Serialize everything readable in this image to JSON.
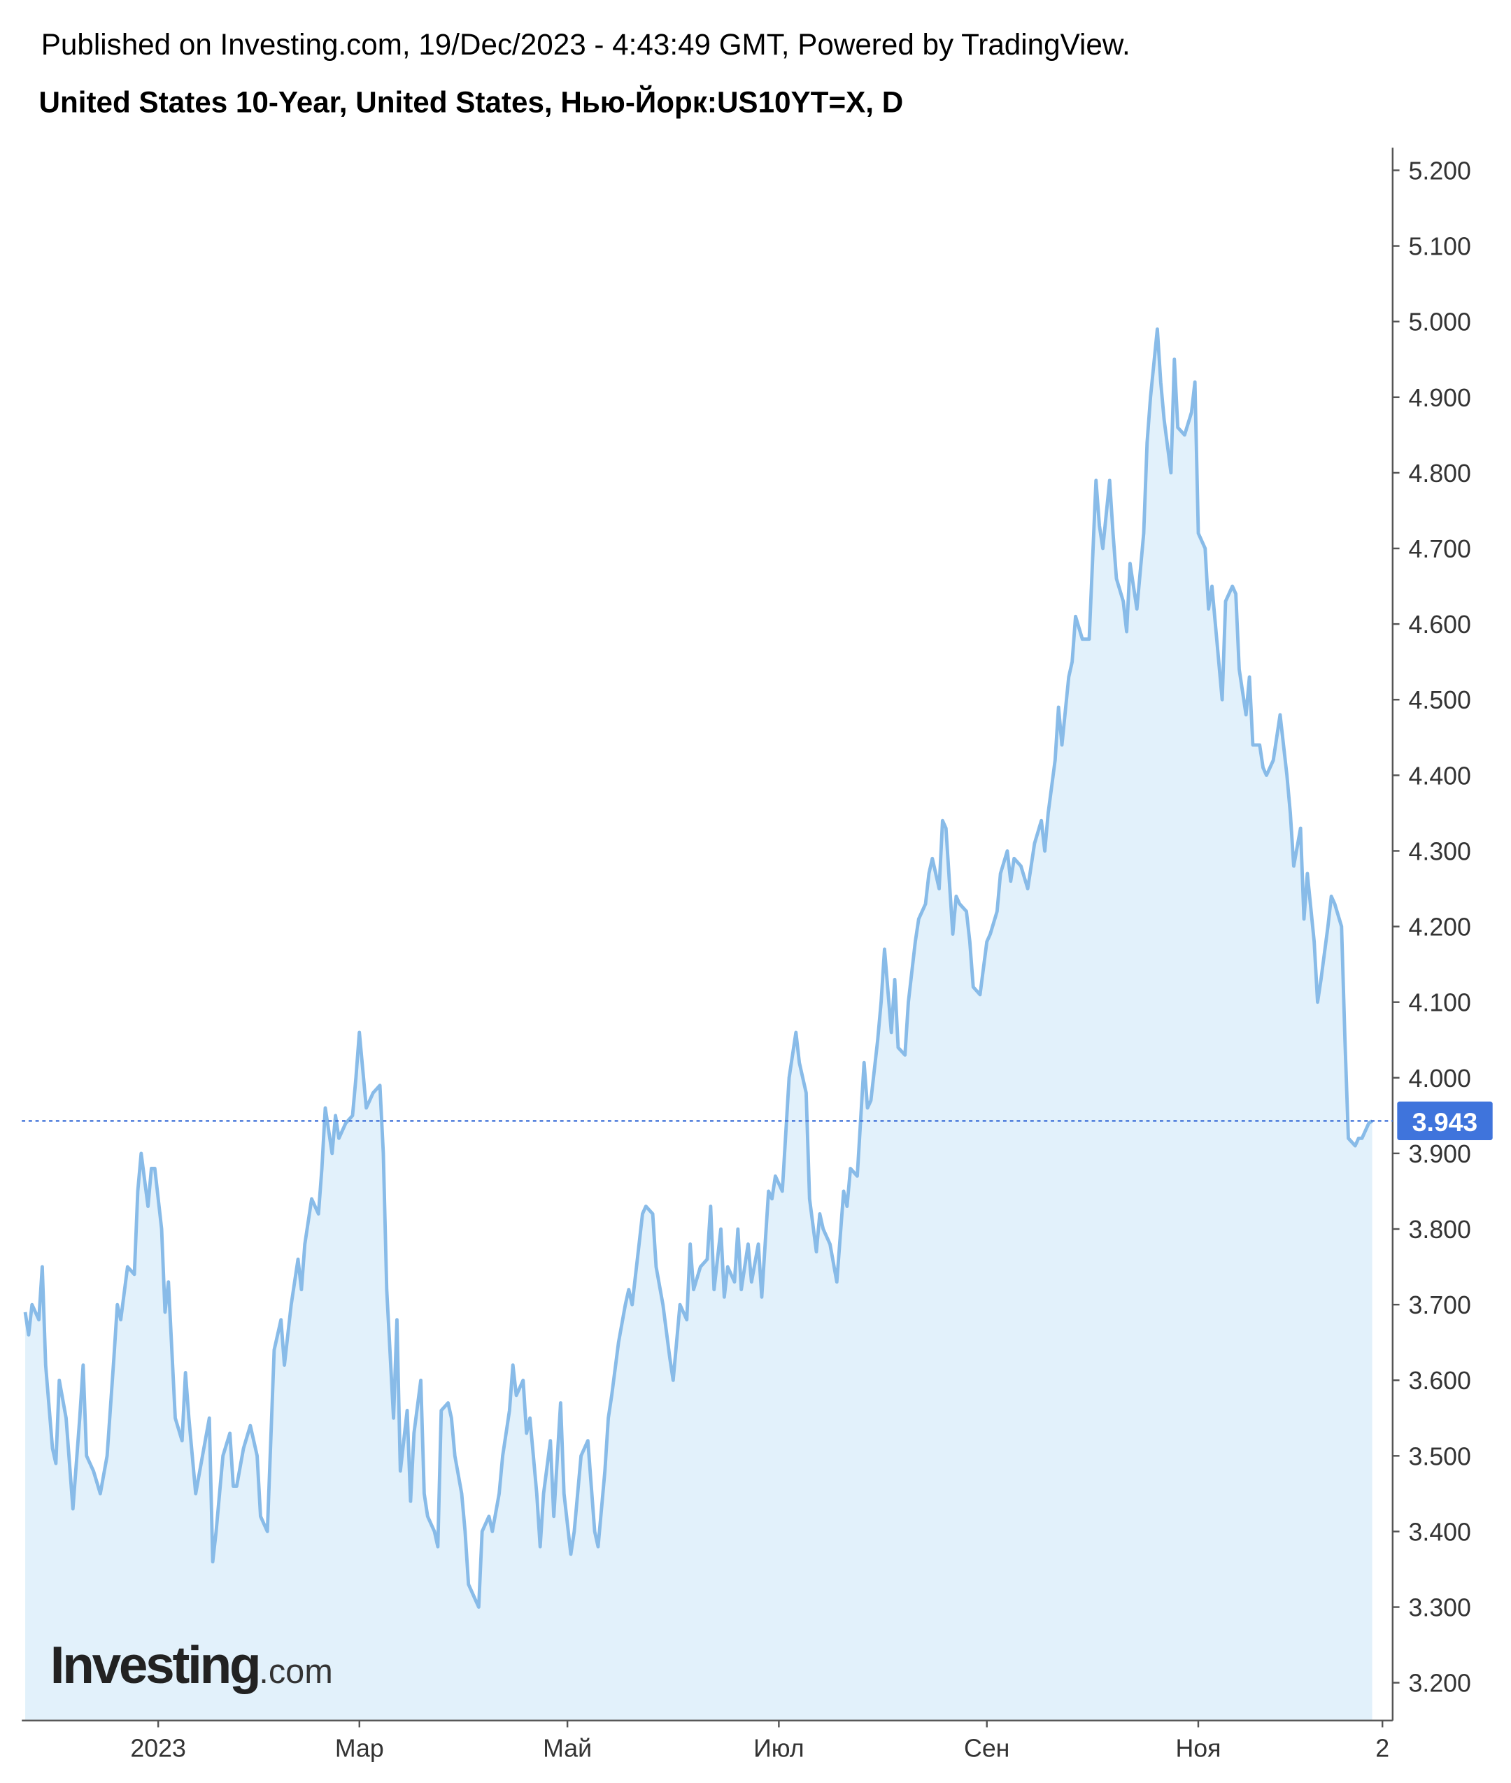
{
  "header": {
    "published": "Published on Investing.com, 19/Dec/2023 - 4:43:49 GMT, Powered by TradingView.",
    "instrument": "United States 10-Year, United States, Нью-Йорк:US10YT=X, D"
  },
  "watermark": {
    "brand": "Investing",
    "suffix": ".com"
  },
  "chart_data": {
    "type": "area",
    "color": "#88bbe8",
    "fill": "#e2f1fb",
    "grid": false,
    "xlim": [
      -40,
      362
    ],
    "ylim": [
      3.15,
      5.23
    ],
    "xticks": [
      {
        "value": 0,
        "label": "2023"
      },
      {
        "value": 59,
        "label": "Мар"
      },
      {
        "value": 120,
        "label": "Май"
      },
      {
        "value": 182,
        "label": "Июл"
      },
      {
        "value": 243,
        "label": "Сен"
      },
      {
        "value": 305,
        "label": "Ноя"
      },
      {
        "value": 359,
        "label": "2"
      }
    ],
    "yticks": [
      {
        "value": 3.2,
        "label": "3.200"
      },
      {
        "value": 3.3,
        "label": "3.300"
      },
      {
        "value": 3.4,
        "label": "3.400"
      },
      {
        "value": 3.5,
        "label": "3.500"
      },
      {
        "value": 3.6,
        "label": "3.600"
      },
      {
        "value": 3.7,
        "label": "3.700"
      },
      {
        "value": 3.8,
        "label": "3.800"
      },
      {
        "value": 3.9,
        "label": "3.900"
      },
      {
        "value": 4.0,
        "label": "4.000"
      },
      {
        "value": 4.1,
        "label": "4.100"
      },
      {
        "value": 4.2,
        "label": "4.200"
      },
      {
        "value": 4.3,
        "label": "4.300"
      },
      {
        "value": 4.4,
        "label": "4.400"
      },
      {
        "value": 4.5,
        "label": "4.500"
      },
      {
        "value": 4.6,
        "label": "4.600"
      },
      {
        "value": 4.7,
        "label": "4.700"
      },
      {
        "value": 4.8,
        "label": "4.800"
      },
      {
        "value": 4.9,
        "label": "4.900"
      },
      {
        "value": 5.0,
        "label": "5.000"
      },
      {
        "value": 5.1,
        "label": "5.100"
      },
      {
        "value": 5.2,
        "label": "5.200"
      }
    ],
    "x": [
      -39,
      -38,
      -37,
      -35,
      -34,
      -33,
      -31,
      -30,
      -29,
      -27,
      -25,
      -23,
      -22,
      -21,
      -19,
      -17,
      -15,
      -13,
      -12,
      -11,
      -9,
      -7,
      -6,
      -5,
      -3,
      -2,
      -1,
      1,
      2,
      3,
      5,
      7,
      8,
      9,
      11,
      13,
      15,
      16,
      17,
      19,
      21,
      22,
      23,
      25,
      27,
      29,
      30,
      32,
      34,
      36,
      37,
      39,
      41,
      42,
      43,
      45,
      47,
      48,
      49,
      51,
      52,
      53,
      55,
      57,
      58,
      59,
      61,
      62,
      63,
      65,
      66,
      67,
      69,
      70,
      71,
      73,
      74,
      75,
      77,
      78,
      79,
      81,
      82,
      83,
      85,
      86,
      87,
      89,
      90,
      91,
      93,
      94,
      95,
      97,
      98,
      100,
      101,
      103,
      104,
      105,
      107,
      108,
      109,
      111,
      112,
      113,
      115,
      116,
      118,
      119,
      121,
      122,
      124,
      126,
      128,
      129,
      131,
      132,
      133,
      135,
      137,
      138,
      139,
      141,
      142,
      143,
      145,
      146,
      148,
      150,
      151,
      153,
      155,
      156,
      157,
      159,
      161,
      162,
      163,
      165,
      166,
      167,
      169,
      170,
      171,
      173,
      174,
      176,
      177,
      179,
      180,
      181,
      183,
      185,
      187,
      188,
      190,
      191,
      193,
      194,
      195,
      197,
      199,
      201,
      202,
      203,
      205,
      207,
      208,
      209,
      211,
      212,
      213,
      215,
      216,
      217,
      219,
      220,
      222,
      223,
      225,
      226,
      227,
      229,
      230,
      231,
      233,
      234,
      235,
      237,
      238,
      239,
      241,
      243,
      244,
      246,
      247,
      249,
      250,
      251,
      253,
      255,
      256,
      257,
      259,
      260,
      261,
      263,
      264,
      265,
      267,
      268,
      269,
      271,
      273,
      275,
      276,
      277,
      279,
      280,
      281,
      283,
      284,
      285,
      287,
      289,
      290,
      291,
      293,
      294,
      295,
      297,
      298,
      299,
      301,
      303,
      304,
      305,
      307,
      308,
      309,
      311,
      312,
      313,
      315,
      316,
      317,
      319,
      320,
      321,
      323,
      324,
      325,
      327,
      328,
      329,
      331,
      332,
      333,
      335,
      336,
      337,
      339,
      340,
      341,
      343,
      344,
      345,
      347,
      348,
      349,
      351,
      352,
      353,
      355,
      356
    ],
    "series": [
      {
        "name": "US10YT",
        "values": [
          3.69,
          3.66,
          3.7,
          3.68,
          3.75,
          3.62,
          3.51,
          3.49,
          3.6,
          3.55,
          3.43,
          3.55,
          3.62,
          3.5,
          3.48,
          3.45,
          3.5,
          3.63,
          3.7,
          3.68,
          3.75,
          3.74,
          3.85,
          3.9,
          3.83,
          3.88,
          3.88,
          3.8,
          3.69,
          3.73,
          3.55,
          3.52,
          3.61,
          3.55,
          3.45,
          3.5,
          3.55,
          3.36,
          3.4,
          3.5,
          3.53,
          3.46,
          3.46,
          3.51,
          3.54,
          3.5,
          3.42,
          3.4,
          3.64,
          3.68,
          3.62,
          3.7,
          3.76,
          3.72,
          3.78,
          3.84,
          3.82,
          3.88,
          3.96,
          3.9,
          3.95,
          3.92,
          3.94,
          3.95,
          4.0,
          4.06,
          3.96,
          3.97,
          3.98,
          3.99,
          3.9,
          3.72,
          3.55,
          3.68,
          3.48,
          3.56,
          3.44,
          3.53,
          3.6,
          3.45,
          3.42,
          3.4,
          3.38,
          3.56,
          3.57,
          3.55,
          3.5,
          3.45,
          3.4,
          3.33,
          3.31,
          3.3,
          3.4,
          3.42,
          3.4,
          3.45,
          3.5,
          3.56,
          3.62,
          3.58,
          3.6,
          3.53,
          3.55,
          3.45,
          3.38,
          3.45,
          3.52,
          3.42,
          3.57,
          3.45,
          3.37,
          3.4,
          3.5,
          3.52,
          3.4,
          3.38,
          3.48,
          3.55,
          3.58,
          3.65,
          3.7,
          3.72,
          3.7,
          3.78,
          3.82,
          3.83,
          3.82,
          3.75,
          3.7,
          3.63,
          3.6,
          3.7,
          3.68,
          3.78,
          3.72,
          3.75,
          3.76,
          3.83,
          3.72,
          3.8,
          3.71,
          3.75,
          3.73,
          3.8,
          3.72,
          3.78,
          3.73,
          3.78,
          3.71,
          3.85,
          3.84,
          3.87,
          3.85,
          4.0,
          4.06,
          4.02,
          3.98,
          3.84,
          3.77,
          3.82,
          3.8,
          3.78,
          3.73,
          3.85,
          3.83,
          3.88,
          3.87,
          4.02,
          3.96,
          3.97,
          4.05,
          4.1,
          4.17,
          4.06,
          4.13,
          4.04,
          4.03,
          4.1,
          4.18,
          4.21,
          4.23,
          4.27,
          4.29,
          4.25,
          4.34,
          4.33,
          4.19,
          4.24,
          4.23,
          4.22,
          4.18,
          4.12,
          4.11,
          4.18,
          4.19,
          4.22,
          4.27,
          4.3,
          4.26,
          4.29,
          4.28,
          4.25,
          4.28,
          4.31,
          4.34,
          4.3,
          4.35,
          4.42,
          4.49,
          4.44,
          4.53,
          4.55,
          4.61,
          4.58,
          4.58,
          4.79,
          4.73,
          4.7,
          4.79,
          4.72,
          4.66,
          4.63,
          4.59,
          4.68,
          4.62,
          4.72,
          4.84,
          4.9,
          4.99,
          4.92,
          4.87,
          4.8,
          4.95,
          4.86,
          4.85,
          4.88,
          4.92,
          4.72,
          4.7,
          4.62,
          4.65,
          4.55,
          4.5,
          4.63,
          4.65,
          4.64,
          4.54,
          4.48,
          4.53,
          4.44,
          4.44,
          4.41,
          4.4,
          4.42,
          4.45,
          4.48,
          4.4,
          4.35,
          4.28,
          4.33,
          4.21,
          4.27,
          4.18,
          4.1,
          4.13,
          4.2,
          4.24,
          4.23,
          4.2,
          4.05,
          3.92,
          3.91,
          3.92,
          3.92,
          3.94,
          3.943
        ]
      }
    ]
  }
}
